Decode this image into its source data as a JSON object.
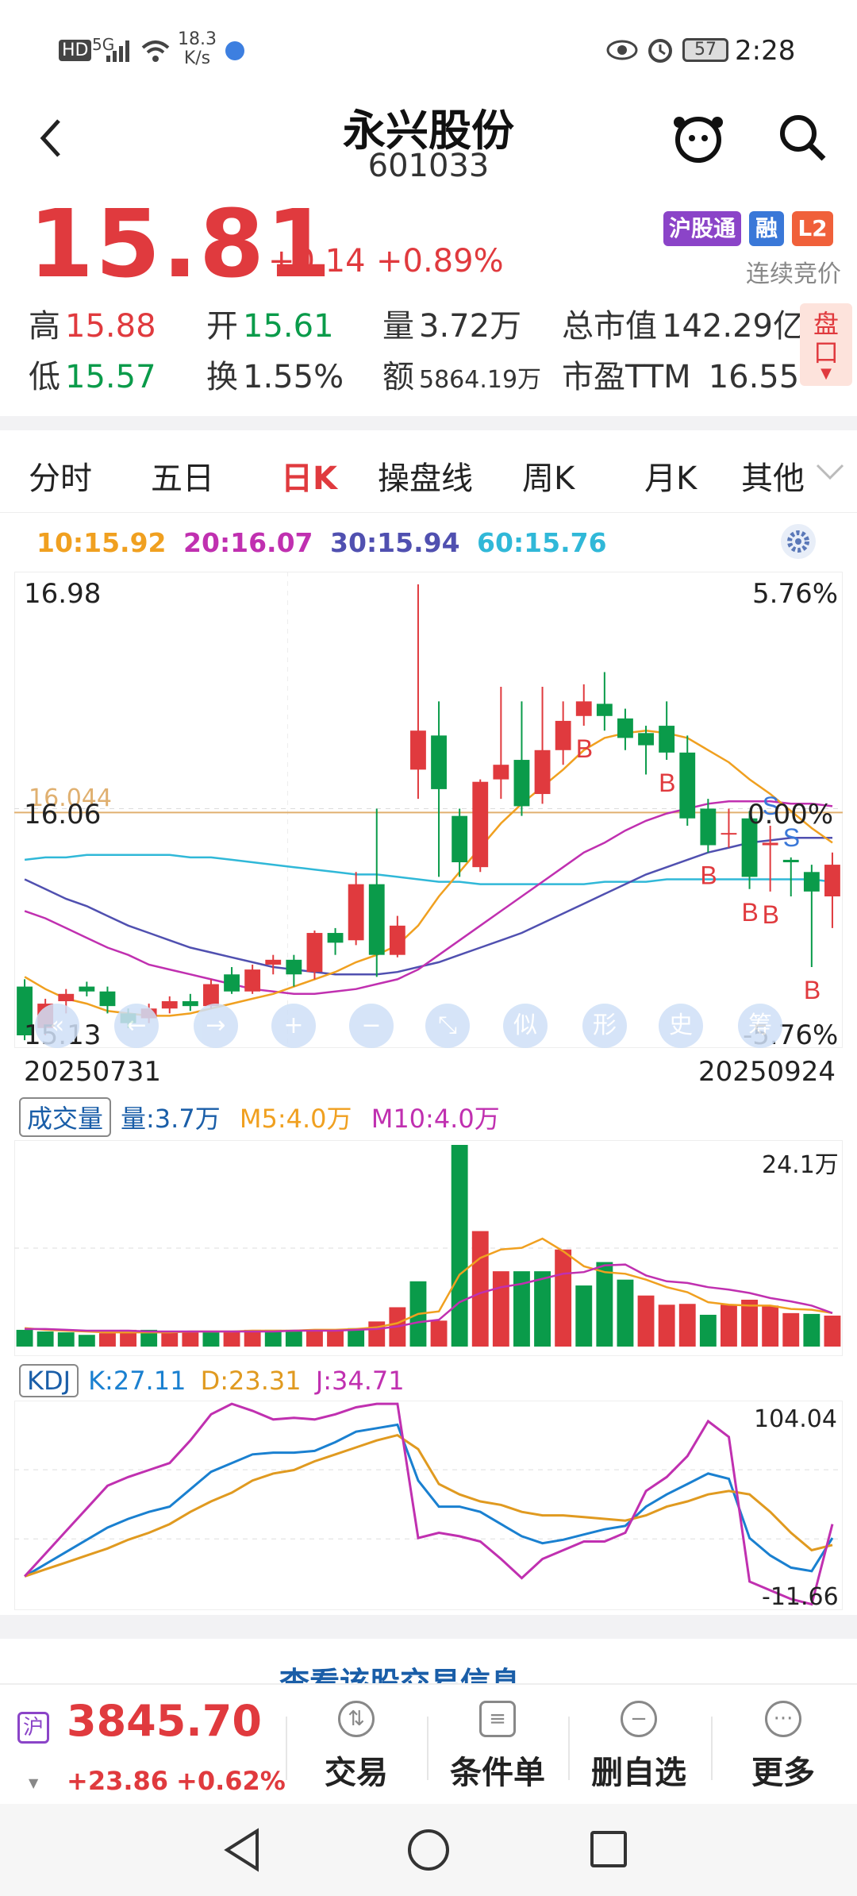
{
  "status_bar": {
    "net_speed_value": "18.3",
    "net_speed_unit": "K/s",
    "signal": "5G",
    "battery": "57",
    "time": "2:28",
    "hd": "HD"
  },
  "header": {
    "title": "永兴股份",
    "code": "601033"
  },
  "quote": {
    "price": "15.81",
    "change": "+0.14",
    "change_pct": "+0.89%",
    "tags": [
      "沪股通",
      "融",
      "L2"
    ],
    "auction_status": "连续竞价",
    "stats": [
      {
        "label": "高",
        "value": "15.88",
        "color": "red"
      },
      {
        "label": "开",
        "value": "15.61",
        "color": "green"
      },
      {
        "label": "量",
        "value": "3.72万",
        "color": "black"
      },
      {
        "label": "总市值",
        "value": "142.29亿",
        "color": "black"
      },
      {
        "label": "低",
        "value": "15.57",
        "color": "green"
      },
      {
        "label": "换",
        "value": "1.55%",
        "color": "black"
      },
      {
        "label": "额",
        "value": "5864.19万",
        "color": "black"
      },
      {
        "label": "市盈TTM",
        "value": "16.55",
        "color": "black"
      }
    ],
    "pankou": [
      "盘",
      "口"
    ]
  },
  "tabs": [
    {
      "label": "分时"
    },
    {
      "label": "五日"
    },
    {
      "label": "日K",
      "active": true
    },
    {
      "label": "操盘线"
    },
    {
      "label": "周K"
    },
    {
      "label": "月K"
    },
    {
      "label": "其他"
    }
  ],
  "ma_legend": [
    {
      "text": "10:15.92",
      "color": "#f0a020"
    },
    {
      "text": "20:16.07",
      "color": "#c030b0"
    },
    {
      "text": "30:15.94",
      "color": "#5050b0"
    },
    {
      "text": "60:15.76",
      "color": "#30b8d8"
    }
  ],
  "kline": {
    "y_max": "16.98",
    "y_min": "15.13",
    "y_mid": "16.06",
    "cost_line": "16.044",
    "pct_top": "5.76%",
    "pct_mid": "0.00%",
    "pct_bot": "-5.76%",
    "date_start": "20250731",
    "date_end": "20250924",
    "tools": [
      "«",
      "←",
      "→",
      "+",
      "−",
      "⤡",
      "似",
      "形",
      "史",
      "筹"
    ]
  },
  "volume": {
    "badge": "成交量",
    "vol": "量:3.7万",
    "m5": "M5:4.0万",
    "m10": "M10:4.0万",
    "max": "24.1万"
  },
  "kdj": {
    "badge": "KDJ",
    "k": "K:27.11",
    "d": "D:23.31",
    "j": "J:34.71",
    "max": "104.04",
    "min": "-11.66"
  },
  "more_link": "查看该股交易信息",
  "bottom": {
    "index_label": "沪",
    "index_value": "3845.70",
    "index_change": "+23.86",
    "index_pct": "+0.62%",
    "buttons": [
      {
        "label": "交易"
      },
      {
        "label": "条件单"
      },
      {
        "label": "删自选"
      },
      {
        "label": "更多"
      }
    ]
  },
  "chart_data": [
    {
      "type": "candlestick",
      "title": "日K",
      "ylim": [
        15.13,
        16.98
      ],
      "candles": [
        {
          "o": 15.33,
          "c": 15.13,
          "h": 15.36,
          "l": 15.11
        },
        {
          "o": 15.16,
          "c": 15.26,
          "h": 15.28,
          "l": 15.13
        },
        {
          "o": 15.27,
          "c": 15.3,
          "h": 15.32,
          "l": 15.22
        },
        {
          "o": 15.33,
          "c": 15.31,
          "h": 15.35,
          "l": 15.29
        },
        {
          "o": 15.31,
          "c": 15.25,
          "h": 15.33,
          "l": 15.22
        },
        {
          "o": 15.22,
          "c": 15.18,
          "h": 15.24,
          "l": 15.16
        },
        {
          "o": 15.2,
          "c": 15.24,
          "h": 15.26,
          "l": 15.18
        },
        {
          "o": 15.24,
          "c": 15.27,
          "h": 15.29,
          "l": 15.22
        },
        {
          "o": 15.27,
          "c": 15.25,
          "h": 15.3,
          "l": 15.23
        },
        {
          "o": 15.25,
          "c": 15.34,
          "h": 15.36,
          "l": 15.24
        },
        {
          "o": 15.38,
          "c": 15.31,
          "h": 15.41,
          "l": 15.3
        },
        {
          "o": 15.31,
          "c": 15.4,
          "h": 15.42,
          "l": 15.3
        },
        {
          "o": 15.42,
          "c": 15.44,
          "h": 15.46,
          "l": 15.38
        },
        {
          "o": 15.44,
          "c": 15.38,
          "h": 15.46,
          "l": 15.33
        },
        {
          "o": 15.39,
          "c": 15.55,
          "h": 15.56,
          "l": 15.36
        },
        {
          "o": 15.55,
          "c": 15.51,
          "h": 15.57,
          "l": 15.46
        },
        {
          "o": 15.52,
          "c": 15.75,
          "h": 15.8,
          "l": 15.5
        },
        {
          "o": 15.75,
          "c": 15.46,
          "h": 16.06,
          "l": 15.37
        },
        {
          "o": 15.46,
          "c": 15.58,
          "h": 15.62,
          "l": 15.45
        },
        {
          "o": 16.22,
          "c": 16.38,
          "h": 16.98,
          "l": 16.1
        },
        {
          "o": 16.36,
          "c": 16.14,
          "h": 16.5,
          "l": 15.78
        },
        {
          "o": 16.03,
          "c": 15.84,
          "h": 16.06,
          "l": 15.78
        },
        {
          "o": 15.82,
          "c": 16.17,
          "h": 16.18,
          "l": 15.8
        },
        {
          "o": 16.18,
          "c": 16.24,
          "h": 16.56,
          "l": 16.1
        },
        {
          "o": 16.26,
          "c": 16.07,
          "h": 16.5,
          "l": 16.03
        },
        {
          "o": 16.12,
          "c": 16.3,
          "h": 16.56,
          "l": 16.08
        },
        {
          "o": 16.3,
          "c": 16.42,
          "h": 16.5,
          "l": 16.24
        },
        {
          "o": 16.44,
          "c": 16.5,
          "h": 16.57,
          "l": 16.4
        },
        {
          "o": 16.49,
          "c": 16.44,
          "h": 16.62,
          "l": 16.38
        },
        {
          "o": 16.43,
          "c": 16.35,
          "h": 16.47,
          "l": 16.3
        },
        {
          "o": 16.37,
          "c": 16.32,
          "h": 16.4,
          "l": 16.2
        },
        {
          "o": 16.4,
          "c": 16.29,
          "h": 16.5,
          "l": 16.26
        },
        {
          "o": 16.29,
          "c": 16.02,
          "h": 16.36,
          "l": 15.99
        },
        {
          "o": 16.06,
          "c": 15.91,
          "h": 16.1,
          "l": 15.88
        },
        {
          "o": 15.96,
          "c": 15.96,
          "h": 16.06,
          "l": 15.9
        },
        {
          "o": 16.02,
          "c": 15.78,
          "h": 16.05,
          "l": 15.73
        },
        {
          "o": 15.91,
          "c": 15.92,
          "h": 15.99,
          "l": 15.72
        },
        {
          "o": 15.85,
          "c": 15.84,
          "h": 15.86,
          "l": 15.7
        },
        {
          "o": 15.8,
          "c": 15.72,
          "h": 15.83,
          "l": 15.41
        },
        {
          "o": 15.7,
          "c": 15.83,
          "h": 15.88,
          "l": 15.57
        }
      ],
      "signals": [
        {
          "i": 27,
          "t": "B"
        },
        {
          "i": 31,
          "t": "B"
        },
        {
          "i": 33,
          "t": "B"
        },
        {
          "i": 35,
          "t": "B"
        },
        {
          "i": 36,
          "t": "S"
        },
        {
          "i": 36,
          "t": "B"
        },
        {
          "i": 37,
          "t": "S"
        },
        {
          "i": 38,
          "t": "B"
        }
      ],
      "ma10": [
        15.37,
        15.32,
        15.28,
        15.26,
        15.23,
        15.22,
        15.21,
        15.21,
        15.22,
        15.24,
        15.26,
        15.28,
        15.3,
        15.33,
        15.36,
        15.39,
        15.43,
        15.46,
        15.5,
        15.58,
        15.7,
        15.8,
        15.9,
        16.0,
        16.08,
        16.15,
        16.22,
        16.3,
        16.35,
        16.37,
        16.38,
        16.37,
        16.35,
        16.3,
        16.25,
        16.18,
        16.12,
        16.05,
        15.98,
        15.92
      ],
      "ma20": [
        15.64,
        15.61,
        15.57,
        15.53,
        15.49,
        15.46,
        15.42,
        15.4,
        15.38,
        15.36,
        15.34,
        15.32,
        15.31,
        15.3,
        15.3,
        15.31,
        15.32,
        15.34,
        15.36,
        15.4,
        15.46,
        15.52,
        15.58,
        15.64,
        15.7,
        15.76,
        15.82,
        15.88,
        15.92,
        15.97,
        16.01,
        16.04,
        16.06,
        16.08,
        16.09,
        16.09,
        16.09,
        16.08,
        16.08,
        16.07
      ],
      "ma30": [
        15.77,
        15.73,
        15.69,
        15.66,
        15.62,
        15.58,
        15.55,
        15.52,
        15.49,
        15.47,
        15.45,
        15.43,
        15.41,
        15.4,
        15.39,
        15.38,
        15.38,
        15.38,
        15.39,
        15.41,
        15.43,
        15.46,
        15.49,
        15.52,
        15.55,
        15.59,
        15.63,
        15.67,
        15.71,
        15.75,
        15.79,
        15.82,
        15.85,
        15.88,
        15.9,
        15.92,
        15.93,
        15.94,
        15.94,
        15.94
      ],
      "ma60": [
        15.85,
        15.86,
        15.86,
        15.87,
        15.87,
        15.87,
        15.87,
        15.87,
        15.86,
        15.86,
        15.85,
        15.84,
        15.83,
        15.82,
        15.81,
        15.8,
        15.79,
        15.79,
        15.78,
        15.77,
        15.76,
        15.76,
        15.75,
        15.75,
        15.75,
        15.75,
        15.75,
        15.75,
        15.76,
        15.76,
        15.76,
        15.77,
        15.77,
        15.77,
        15.77,
        15.77,
        15.77,
        15.77,
        15.77,
        15.76
      ]
    },
    {
      "type": "bar",
      "title": "成交量",
      "ylim": [
        0,
        24.1
      ],
      "values": [
        2.0,
        1.8,
        1.7,
        1.4,
        1.6,
        2.0,
        2.0,
        1.7,
        1.7,
        1.8,
        1.9,
        2.0,
        2.0,
        2.0,
        2.0,
        2.0,
        2.2,
        3.0,
        4.7,
        7.8,
        3.1,
        24.1,
        13.8,
        9.0,
        9.0,
        9.0,
        11.6,
        7.3,
        10.1,
        8.0,
        6.1,
        5.0,
        5.1,
        3.8,
        5.0,
        5.6,
        4.9,
        4.0,
        3.9,
        3.7
      ],
      "up": [
        false,
        false,
        false,
        false,
        true,
        true,
        false,
        true,
        true,
        false,
        true,
        true,
        false,
        false,
        true,
        true,
        false,
        true,
        true,
        false,
        true,
        false,
        true,
        true,
        false,
        false,
        true,
        false,
        false,
        false,
        true,
        true,
        true,
        false,
        true,
        true,
        true,
        true,
        false,
        true
      ],
      "m5": [
        2.2,
        2.0,
        1.9,
        1.8,
        1.7,
        1.7,
        1.7,
        1.7,
        1.8,
        1.8,
        1.8,
        1.9,
        1.9,
        1.9,
        2.0,
        2.0,
        2.1,
        2.3,
        2.8,
        3.9,
        4.2,
        8.6,
        10.6,
        11.6,
        11.8,
        12.9,
        11.4,
        9.6,
        8.9,
        8.7,
        8.0,
        7.1,
        6.5,
        5.3,
        5.0,
        4.9,
        4.9,
        4.5,
        4.4,
        4.0
      ],
      "m10": [
        2.1,
        2.1,
        2.0,
        1.9,
        1.9,
        1.9,
        1.8,
        1.8,
        1.8,
        1.8,
        1.8,
        1.8,
        1.8,
        1.9,
        1.9,
        1.9,
        2.0,
        2.1,
        2.4,
        2.9,
        3.2,
        5.3,
        6.4,
        7.1,
        7.5,
        8.1,
        8.7,
        8.9,
        9.7,
        9.8,
        8.5,
        7.8,
        7.6,
        7.1,
        6.8,
        6.4,
        5.8,
        5.4,
        4.9,
        4.0
      ]
    },
    {
      "type": "line",
      "title": "KDJ",
      "ylim": [
        -11.66,
        104.04
      ],
      "series": [
        {
          "name": "K",
          "values": [
            5,
            12,
            19,
            26,
            33,
            38,
            42,
            45,
            55,
            65,
            70,
            75,
            76,
            76,
            77,
            82,
            88,
            90,
            92,
            60,
            45,
            45,
            42,
            35,
            28,
            24,
            26,
            29,
            32,
            34,
            45,
            52,
            58,
            64,
            61,
            27,
            17,
            10,
            8,
            27
          ]
        },
        {
          "name": "D",
          "values": [
            5,
            9,
            13,
            17,
            21,
            26,
            30,
            35,
            42,
            48,
            53,
            60,
            64,
            66,
            71,
            75,
            79,
            83,
            86,
            78,
            58,
            52,
            48,
            46,
            42,
            40,
            40,
            39,
            38,
            37,
            40,
            45,
            48,
            52,
            54,
            52,
            42,
            30,
            20,
            23
          ]
        },
        {
          "name": "J",
          "values": [
            5,
            18,
            31,
            44,
            57,
            62,
            66,
            70,
            83,
            98,
            104,
            100,
            95,
            96,
            95,
            98,
            102,
            104,
            104,
            27,
            30,
            28,
            25,
            15,
            4,
            15,
            20,
            25,
            25,
            30,
            54,
            62,
            74,
            94,
            85,
            2,
            -3,
            -8,
            -11,
            35
          ]
        }
      ]
    }
  ]
}
